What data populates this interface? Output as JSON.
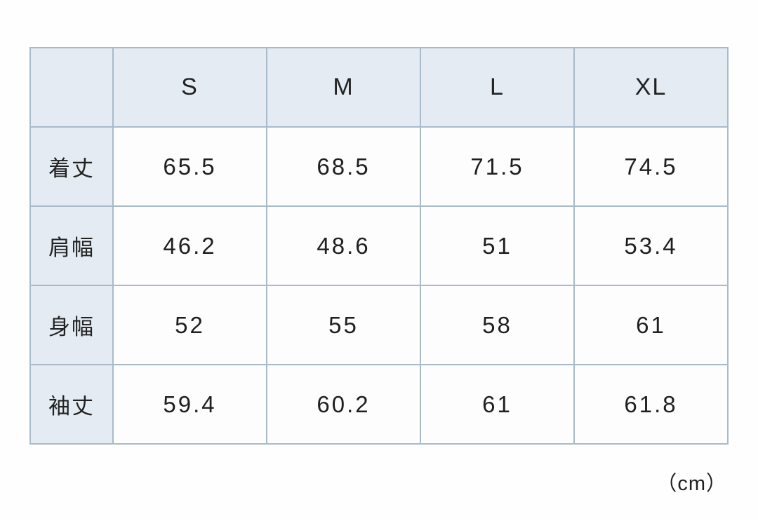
{
  "table": {
    "corner_label": "",
    "column_headers": [
      "S",
      "M",
      "L",
      "XL"
    ],
    "rows": [
      {
        "label": "着丈",
        "values": [
          "65.5",
          "68.5",
          "71.5",
          "74.5"
        ]
      },
      {
        "label": "肩幅",
        "values": [
          "46.2",
          "48.6",
          "51",
          "53.4"
        ]
      },
      {
        "label": "身幅",
        "values": [
          "52",
          "55",
          "58",
          "61"
        ]
      },
      {
        "label": "袖丈",
        "values": [
          "59.4",
          "60.2",
          "61",
          "61.8"
        ]
      }
    ],
    "unit_label": "（cm）"
  },
  "colors": {
    "header_fill": "#e4ebf3",
    "border": "#a9bacb",
    "cell_fill": "#fdfdfd",
    "text": "#1f1f1f",
    "page_background": "#fefefe"
  },
  "chart_data": {
    "type": "table",
    "title": "",
    "columns": [
      "",
      "S",
      "M",
      "L",
      "XL"
    ],
    "row_labels": [
      "着丈",
      "肩幅",
      "身幅",
      "袖丈"
    ],
    "rows": [
      [
        "着丈",
        65.5,
        68.5,
        71.5,
        74.5
      ],
      [
        "肩幅",
        46.2,
        48.6,
        51,
        53.4
      ],
      [
        "身幅",
        52,
        55,
        58,
        61
      ],
      [
        "袖丈",
        59.4,
        60.2,
        61,
        61.8
      ]
    ],
    "unit": "cm"
  }
}
